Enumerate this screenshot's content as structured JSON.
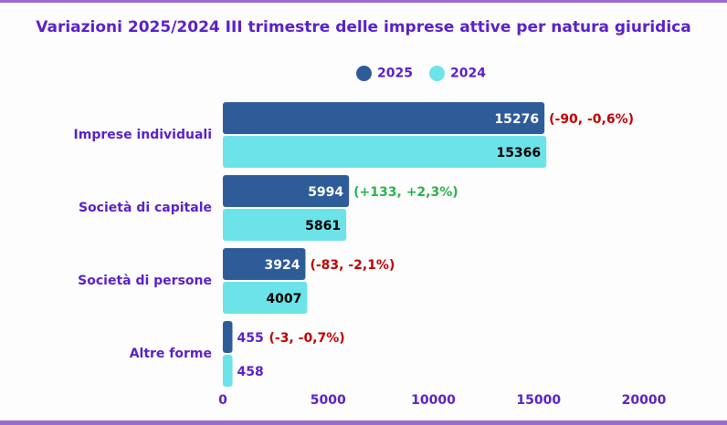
{
  "chart_data": {
    "type": "bar",
    "orientation": "horizontal",
    "title": "Variazioni 2025/2024 III trimestre delle imprese attive per natura giuridica",
    "categories": [
      "Imprese individuali",
      "Società di capitale",
      "Società di persone",
      "Altre forme"
    ],
    "series": [
      {
        "name": "2025",
        "color": "#2e5c98",
        "values": [
          15276,
          5994,
          3924,
          455
        ]
      },
      {
        "name": "2024",
        "color": "#6ce3e8",
        "values": [
          15366,
          5861,
          4007,
          458
        ]
      }
    ],
    "annotations": [
      {
        "text": "(-90, -0,6%)",
        "color": "#c00000"
      },
      {
        "text": "(+133, +2,3%)",
        "color": "#2bb24c"
      },
      {
        "text": "(-83, -2,1%)",
        "color": "#c00000"
      },
      {
        "text": "(-3, -0,7%)",
        "color": "#c00000"
      }
    ],
    "xlim": [
      0,
      20000
    ],
    "xticks": [
      "0",
      "5000",
      "10000",
      "15000",
      "20000"
    ],
    "xlabel": "",
    "ylabel": "",
    "legend": "top",
    "grid": false
  }
}
